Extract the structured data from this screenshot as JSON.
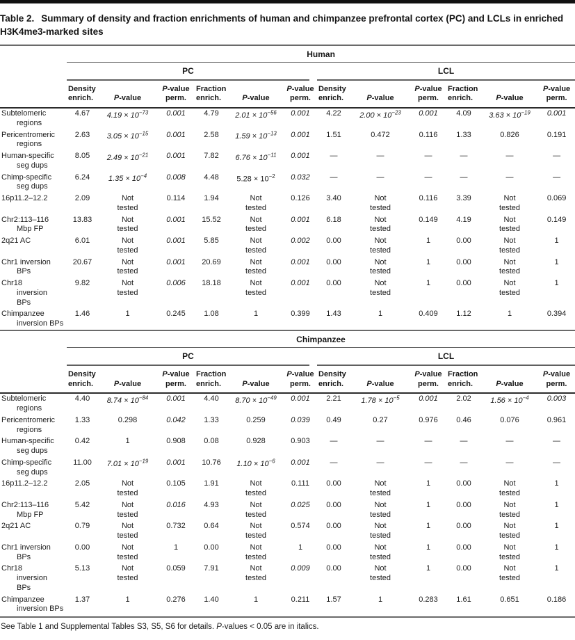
{
  "title": {
    "label": "Table 2.",
    "text": "Summary of density and fraction enrichments of human and chimpanzee prefrontal cortex (PC) and LCLs in enriched H3K4me3-marked sites"
  },
  "groups": [
    "PC",
    "LCL"
  ],
  "columns": [
    "Density\nenrich.",
    "*P*-value",
    "*P*-value\nperm.",
    "Fraction\nenrich.",
    "*P*-value",
    "*P*-value\nperm."
  ],
  "sections": [
    {
      "species": "Human",
      "rows": [
        {
          "label": "Subtelomeric\nregions",
          "cells": [
            "4.67",
            "*4.19 × 10^{−73}*",
            "*0.001*",
            "4.79",
            "*2.01 × 10^{−56}*",
            "*0.001*",
            "4.22",
            "*2.00 × 10^{−23}*",
            "*0.001*",
            "4.09",
            "*3.63 × 10^{−19}*",
            "*0.001*"
          ]
        },
        {
          "label": "Pericentromeric\nregions",
          "cells": [
            "2.63",
            "*3.05 × 10^{−15}*",
            "*0.001*",
            "2.58",
            "*1.59 × 10^{−13}*",
            "*0.001*",
            "1.51",
            "0.472",
            "0.116",
            "1.33",
            "0.826",
            "0.191"
          ]
        },
        {
          "label": "Human-specific\nseg dups",
          "cells": [
            "8.05",
            "*2.49 × 10^{−21}*",
            "*0.001*",
            "7.82",
            "*6.76 × 10^{−11}*",
            "*0.001*",
            "—",
            "—",
            "—",
            "—",
            "—",
            "—"
          ]
        },
        {
          "label": "Chimp-specific\nseg dups",
          "cells": [
            "6.24",
            "*1.35 × 10^{−4}*",
            "*0.008*",
            "4.48",
            "5.28 × 10^{−2}",
            "*0.032*",
            "—",
            "—",
            "—",
            "—",
            "—",
            "—"
          ]
        },
        {
          "label": "16p11.2–12.2",
          "cells": [
            "2.09",
            "Not\ntested",
            "0.114",
            "1.94",
            "Not\ntested",
            "0.126",
            "3.40",
            "Not\ntested",
            "0.116",
            "3.39",
            "Not\ntested",
            "0.069"
          ]
        },
        {
          "label": "Chr2:113–116\nMbp FP",
          "cells": [
            "13.83",
            "Not\ntested",
            "*0.001*",
            "15.52",
            "Not\ntested",
            "*0.001*",
            "6.18",
            "Not\ntested",
            "0.149",
            "4.19",
            "Not\ntested",
            "0.149"
          ]
        },
        {
          "label": "2q21 AC",
          "cells": [
            "6.01",
            "Not\ntested",
            "*0.001*",
            "5.85",
            "Not\ntested",
            "*0.002*",
            "0.00",
            "Not\ntested",
            "1",
            "0.00",
            "Not\ntested",
            "1"
          ]
        },
        {
          "label": "Chr1 inversion\nBPs",
          "cells": [
            "20.67",
            "Not\ntested",
            "*0.001*",
            "20.69",
            "Not\ntested",
            "*0.001*",
            "0.00",
            "Not\ntested",
            "1",
            "0.00",
            "Not\ntested",
            "1"
          ]
        },
        {
          "label": "Chr18\ninversion\nBPs",
          "cells": [
            "9.82",
            "Not\ntested",
            "*0.006*",
            "18.18",
            "Not\ntested",
            "*0.001*",
            "0.00",
            "Not\ntested",
            "1",
            "0.00",
            "Not\ntested",
            "1"
          ]
        },
        {
          "label": "Chimpanzee\ninversion BPs",
          "cells": [
            "1.46",
            "1",
            "0.245",
            "1.08",
            "1",
            "0.399",
            "1.43",
            "1",
            "0.409",
            "1.12",
            "1",
            "0.394"
          ]
        }
      ]
    },
    {
      "species": "Chimpanzee",
      "rows": [
        {
          "label": "Subtelomeric\nregions",
          "cells": [
            "4.40",
            "*8.74 × 10^{−84}*",
            "*0.001*",
            "4.40",
            "*8.70 × 10^{−49}*",
            "*0.001*",
            "2.21",
            "*1.78 × 10^{−5}*",
            "*0.001*",
            "2.02",
            "*1.56 × 10^{−4}*",
            "*0.003*"
          ]
        },
        {
          "label": "Pericentromeric\nregions",
          "cells": [
            "1.33",
            "0.298",
            "*0.042*",
            "1.33",
            "0.259",
            "*0.039*",
            "0.49",
            "0.27",
            "0.976",
            "0.46",
            "0.076",
            "0.961"
          ]
        },
        {
          "label": "Human-specific\nseg dups",
          "cells": [
            "0.42",
            "1",
            "0.908",
            "0.08",
            "0.928",
            "0.903",
            "—",
            "—",
            "—",
            "—",
            "—",
            "—"
          ]
        },
        {
          "label": "Chimp-specific\nseg dups",
          "cells": [
            "11.00",
            "*7.01 × 10^{−19}*",
            "*0.001*",
            "10.76",
            "*1.10 × 10^{−6}*",
            "*0.001*",
            "—",
            "—",
            "—",
            "—",
            "—",
            "—"
          ]
        },
        {
          "label": "16p11.2–12.2",
          "cells": [
            "2.05",
            "Not\ntested",
            "0.105",
            "1.91",
            "Not\ntested",
            "0.111",
            "0.00",
            "Not\ntested",
            "1",
            "0.00",
            "Not\ntested",
            "1"
          ]
        },
        {
          "label": "Chr2:113–116\nMbp FP",
          "cells": [
            "5.42",
            "Not\ntested",
            "*0.016*",
            "4.93",
            "Not\ntested",
            "*0.025*",
            "0.00",
            "Not\ntested",
            "1",
            "0.00",
            "Not\ntested",
            "1"
          ]
        },
        {
          "label": "2q21 AC",
          "cells": [
            "0.79",
            "Not\ntested",
            "0.732",
            "0.64",
            "Not\ntested",
            "0.574",
            "0.00",
            "Not\ntested",
            "1",
            "0.00",
            "Not\ntested",
            "1"
          ]
        },
        {
          "label": "Chr1 inversion\nBPs",
          "cells": [
            "0.00",
            "Not\ntested",
            "1",
            "0.00",
            "Not\ntested",
            "1",
            "0.00",
            "Not\ntested",
            "1",
            "0.00",
            "Not\ntested",
            "1"
          ]
        },
        {
          "label": "Chr18\ninversion\nBPs",
          "cells": [
            "5.13",
            "Not\ntested",
            "0.059",
            "7.91",
            "Not\ntested",
            "*0.009*",
            "0.00",
            "Not\ntested",
            "1",
            "0.00",
            "Not\ntested",
            "1"
          ]
        },
        {
          "label": "Chimpanzee\ninversion BPs",
          "cells": [
            "1.37",
            "1",
            "0.276",
            "1.40",
            "1",
            "0.211",
            "1.57",
            "1",
            "0.283",
            "1.61",
            "0.651",
            "0.186"
          ]
        }
      ]
    }
  ],
  "footnote": "See Table 1 and Supplemental Tables S3, S5, S6 for details. *P*-values < 0.05 are in italics."
}
